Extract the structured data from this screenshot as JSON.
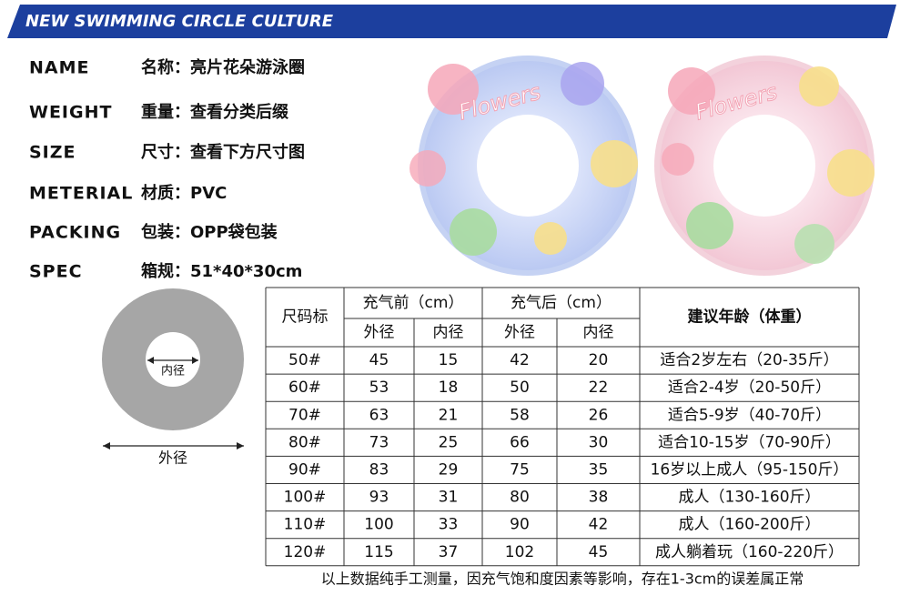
{
  "header": {
    "title": "NEW SWIMMING CIRCLE CULTURE"
  },
  "specs": [
    {
      "label": "NAME",
      "value": "名称：亮片花朵游泳圈"
    },
    {
      "label": "WEIGHT",
      "value": "重量：查看分类后缀"
    },
    {
      "label": "SIZE",
      "value": "尺寸：查看下方尺寸图"
    },
    {
      "label": "METERIAL",
      "value": "材质：PVC"
    },
    {
      "label": "PACKING",
      "value": "包装：OPP袋包装"
    },
    {
      "label": "SPEC",
      "value": "箱规：51*40*30cm"
    }
  ],
  "product_images": [
    {
      "label": "Flowers"
    },
    {
      "label": "Flowers"
    }
  ],
  "diagram": {
    "inner": "内径",
    "outer": "外径"
  },
  "table": {
    "header": {
      "size": "尺码标",
      "before": "充气前（cm）",
      "after": "充气后（cm）",
      "age": "建议年龄（体重）",
      "sub": [
        "外径",
        "内径",
        "外径",
        "内径"
      ]
    },
    "rows": [
      [
        "50#",
        45,
        15,
        42,
        20,
        "适合2岁左右（20-35斤）"
      ],
      [
        "60#",
        53,
        18,
        50,
        22,
        "适合2-4岁（20-50斤）"
      ],
      [
        "70#",
        63,
        21,
        58,
        26,
        "适合5-9岁（40-70斤）"
      ],
      [
        "80#",
        73,
        25,
        66,
        30,
        "适合10-15岁（70-90斤）"
      ],
      [
        "90#",
        83,
        29,
        75,
        35,
        "16岁以上成人（95-150斤）"
      ],
      [
        "100#",
        93,
        31,
        80,
        38,
        "成人（130-160斤）"
      ],
      [
        "110#",
        100,
        33,
        90,
        42,
        "成人（160-200斤）"
      ],
      [
        "120#",
        115,
        37,
        102,
        45,
        "成人躺着玩（160-220斤）"
      ]
    ]
  },
  "footnote": "以上数据纯手工测量，因充气饱和度因素等影响，存在1-3cm的误差属正常"
}
